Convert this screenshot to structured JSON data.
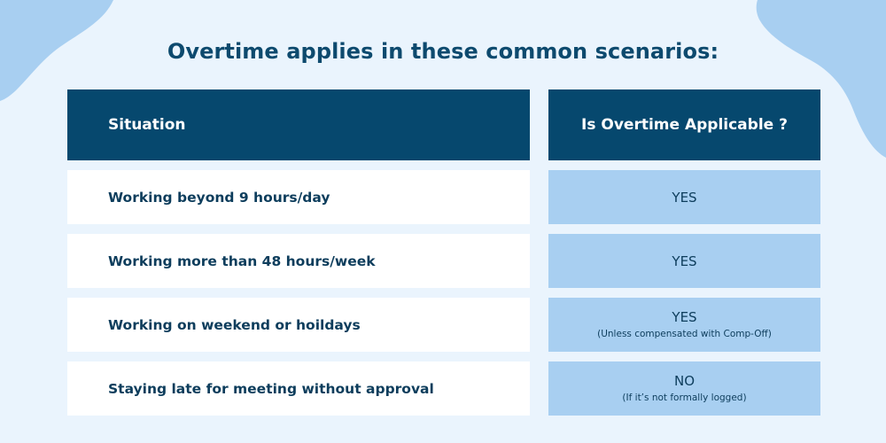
{
  "title": "Overtime applies in these common scenarios:",
  "table": {
    "headers": {
      "situation": "Situation",
      "applicable": "Is Overtime Applicable ?"
    },
    "rows": [
      {
        "situation": "Working beyond 9 hours/day",
        "answer": "YES",
        "note": ""
      },
      {
        "situation": "Working more than 48 hours/week",
        "answer": "YES",
        "note": ""
      },
      {
        "situation": "Working on weekend or hoildays",
        "answer": "YES",
        "note": "(Unless compensated with Comp-Off)"
      },
      {
        "situation": "Staying late for meeting without approval",
        "answer": "NO",
        "note": "(If it’s not formally logged)"
      }
    ]
  },
  "colors": {
    "background": "#eaf4fd",
    "blob": "#a8cff1",
    "header": "#06486e",
    "answer_cell": "#a8cff1",
    "title_text": "#0d4a6e"
  }
}
